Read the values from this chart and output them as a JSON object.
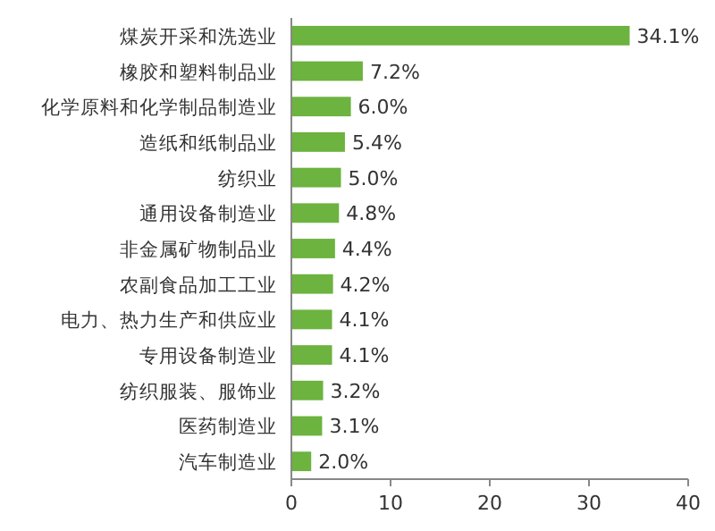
{
  "chart_data": {
    "type": "bar",
    "orientation": "horizontal",
    "categories": [
      "煤炭开采和洗选业",
      "橡胶和塑料制品业",
      "化学原料和化学制品制造业",
      "造纸和纸制品业",
      "纺织业",
      "通用设备制造业",
      "非金属矿物制品业",
      "农副食品加工工业",
      "电力、热力生产和供应业",
      "专用设备制造业",
      "纺织服装、服饰业",
      "医药制造业",
      "汽车制造业"
    ],
    "values": [
      34.1,
      7.2,
      6.0,
      5.4,
      5.0,
      4.8,
      4.4,
      4.2,
      4.1,
      4.1,
      3.2,
      3.1,
      2.0
    ],
    "value_labels": [
      "34.1%",
      "7.2%",
      "6.0%",
      "5.4%",
      "5.0%",
      "4.8%",
      "4.4%",
      "4.2%",
      "4.1%",
      "4.1%",
      "3.2%",
      "3.1%",
      "2.0%"
    ],
    "color": "#6cb33f",
    "xlim": [
      0,
      40
    ],
    "xticks": [
      0,
      10,
      20,
      30,
      40
    ]
  }
}
